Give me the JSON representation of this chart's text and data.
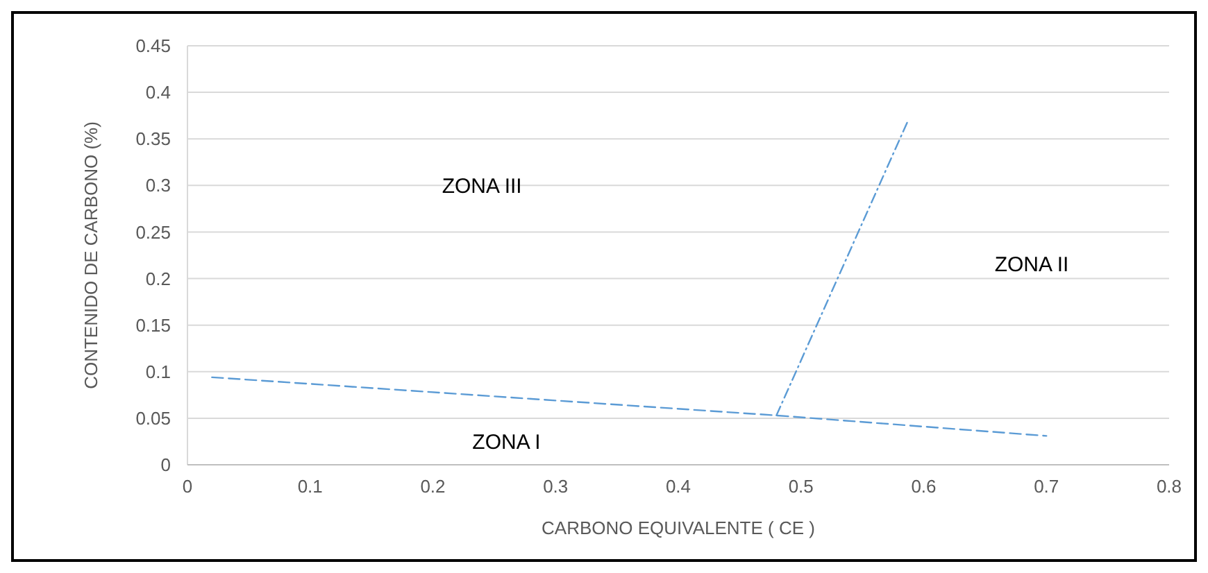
{
  "chart_data": {
    "type": "line",
    "xlabel": "CARBONO EQUIVALENTE ( CE )",
    "ylabel": "CONTENIDO DE CARBONO (%)",
    "xlim": [
      0,
      0.8
    ],
    "xticks": [
      0,
      0.1,
      0.2,
      0.3,
      0.4,
      0.5,
      0.6,
      0.7,
      0.8
    ],
    "ylim": [
      0,
      0.45
    ],
    "yticks": [
      0,
      0.05,
      0.1,
      0.15,
      0.2,
      0.25,
      0.3,
      0.35,
      0.4,
      0.45
    ],
    "grid": "y",
    "marker": "none",
    "series": [
      {
        "color": "#5b9bd5",
        "line_style": "dashed",
        "x": [
          0.02,
          0.48,
          0.7
        ],
        "values": [
          0.094,
          0.053,
          0.031
        ]
      },
      {
        "color": "#5b9bd5",
        "line_style": "dotted",
        "x": [
          0.48,
          0.587
        ],
        "values": [
          0.053,
          0.369
        ]
      }
    ],
    "annotations": [
      "ZONA III",
      "ZONA II",
      "ZONA I"
    ]
  }
}
